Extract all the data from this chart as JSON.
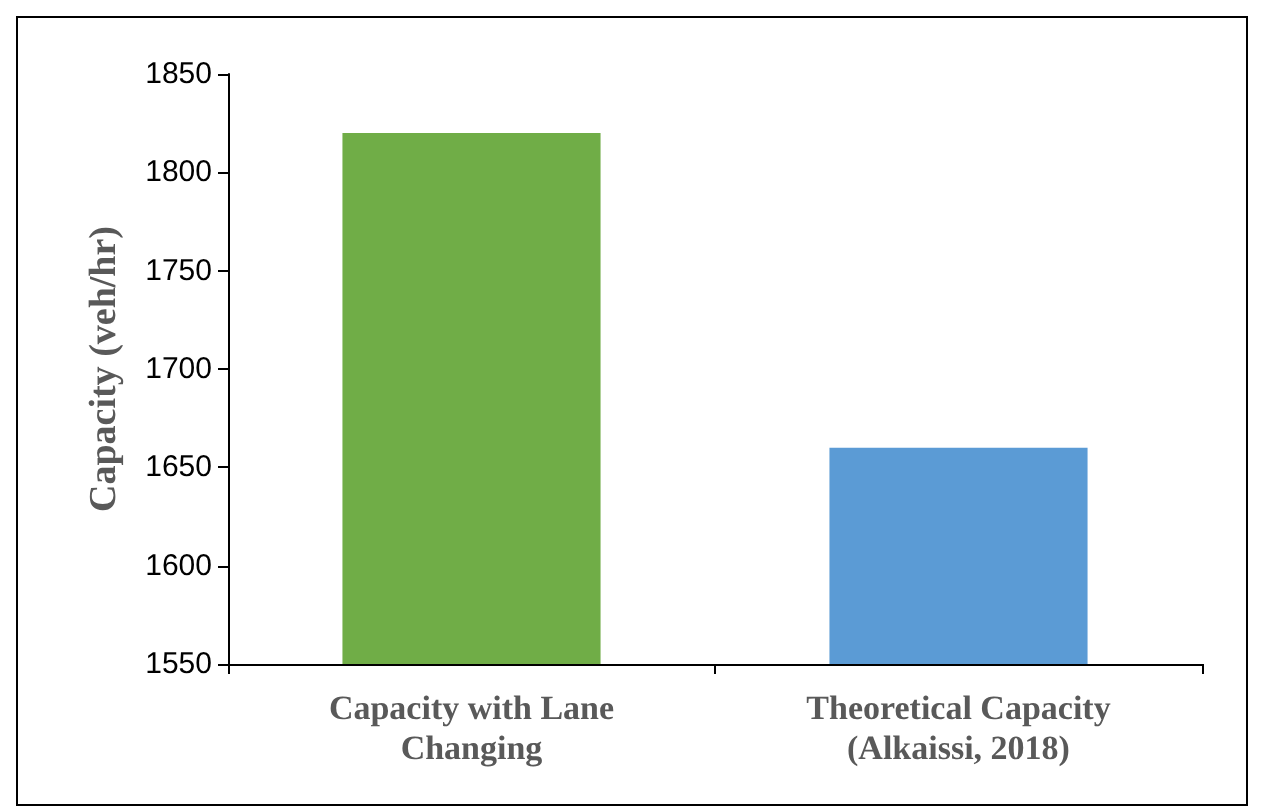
{
  "chart_data": {
    "type": "bar",
    "ylabel": "Capacity (veh/hr)",
    "categories": [
      "Capacity with Lane\nChanging",
      "Theoretical Capacity\n(Alkaissi, 2018)"
    ],
    "values": [
      1820,
      1660
    ],
    "colors": [
      "#70ad47",
      "#5b9bd5"
    ],
    "ylim": [
      1550,
      1850
    ],
    "yticks": [
      1550,
      1600,
      1650,
      1700,
      1750,
      1800,
      1850
    ],
    "grid": false
  }
}
